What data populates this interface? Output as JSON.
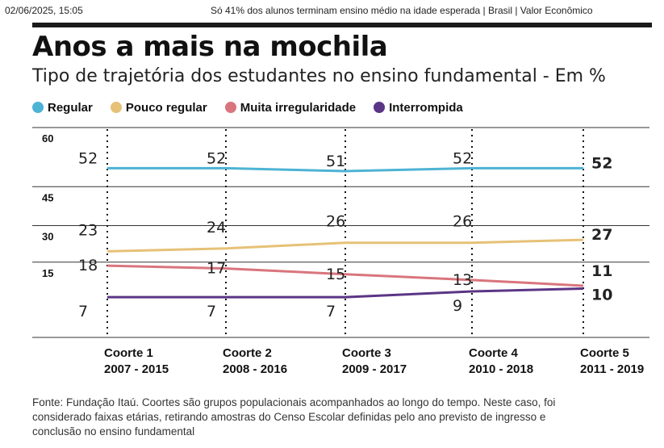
{
  "header": {
    "datetime": "02/06/2025, 15:05",
    "page_title": "Só 41% dos alunos terminam ensino médio na idade esperada | Brasil | Valor Econômico"
  },
  "title": "Anos a mais na mochila",
  "subtitle": "Tipo de trajetória dos estudantes no ensino fundamental - Em %",
  "source": "Fonte: Fundação Itaú. Coortes são grupos populacionais acompanhados ao longo do tempo. Neste caso, foi considerado faixas etárias, retirando amostras do Censo Escolar definidas pelo ano previsto de ingresso e conclusão no ensino fundamental",
  "chart_data": {
    "type": "line",
    "categories": [
      {
        "name": "Coorte 1",
        "period": "2007 - 2015"
      },
      {
        "name": "Coorte 2",
        "period": "2008 - 2016"
      },
      {
        "name": "Coorte 3",
        "period": "2009 - 2017"
      },
      {
        "name": "Coorte 4",
        "period": "2010 - 2018"
      },
      {
        "name": "Coorte 5",
        "period": "2011 - 2019"
      }
    ],
    "yticks": [
      60,
      45,
      30,
      15
    ],
    "ylim": [
      0,
      60
    ],
    "grid": true,
    "legend_position": "top-left",
    "series": [
      {
        "name": "Regular",
        "color": "#4db3d4",
        "values": [
          52,
          52,
          51,
          52,
          52
        ]
      },
      {
        "name": "Pouco regular",
        "color": "#e6c177",
        "values": [
          23,
          24,
          26,
          26,
          27
        ]
      },
      {
        "name": "Muita irregularidade",
        "color": "#d9757d",
        "values": [
          18,
          17,
          15,
          13,
          11
        ]
      },
      {
        "name": "Interrompida",
        "color": "#5b3585",
        "values": [
          7,
          7,
          7,
          9,
          10
        ]
      }
    ]
  }
}
